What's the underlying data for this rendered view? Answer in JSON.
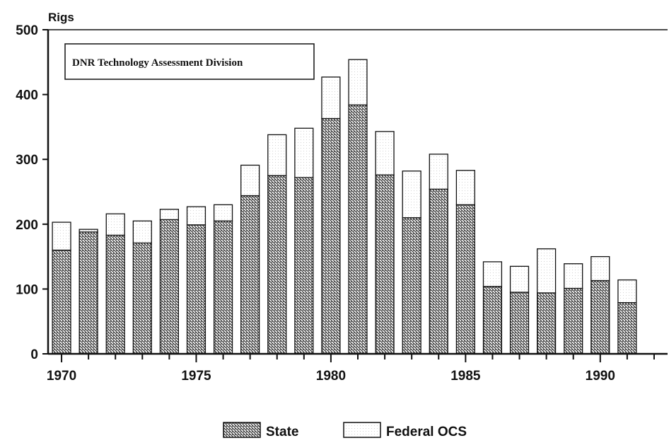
{
  "chart_data": {
    "type": "bar",
    "stacked": true,
    "ylabel": "Rigs",
    "ylim": [
      0,
      500
    ],
    "yticks": [
      0,
      100,
      200,
      300,
      400,
      500
    ],
    "xlim": [
      1969.5,
      1992.5
    ],
    "xticks": [
      1970,
      1975,
      1980,
      1985,
      1990
    ],
    "annotation": "DNR Technology Assessment Division",
    "grid": false,
    "legend_position": "bottom-center",
    "categories": [
      1970,
      1971,
      1972,
      1973,
      1974,
      1975,
      1976,
      1977,
      1978,
      1979,
      1980,
      1981,
      1982,
      1983,
      1984,
      1985,
      1986,
      1987,
      1988,
      1989,
      1990,
      1991
    ],
    "series": [
      {
        "name": "State",
        "fill": "hatched",
        "values": [
          160,
          188,
          183,
          171,
          207,
          199,
          205,
          244,
          275,
          272,
          363,
          384,
          276,
          210,
          254,
          230,
          104,
          95,
          94,
          101,
          113,
          79
        ]
      },
      {
        "name": "Federal OCS",
        "fill": "dotted",
        "values": [
          43,
          4,
          33,
          34,
          16,
          28,
          25,
          47,
          63,
          76,
          64,
          70,
          67,
          72,
          54,
          53,
          38,
          40,
          68,
          38,
          37,
          35
        ]
      }
    ],
    "colors": {
      "ink": "#111111",
      "background": "#ffffff"
    }
  }
}
